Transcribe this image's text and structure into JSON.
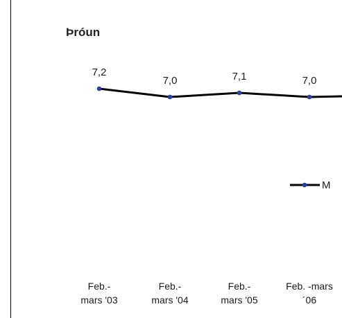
{
  "chart_data": {
    "type": "line",
    "title": "Þróun",
    "categories": [
      [
        "Feb.-",
        "mars '03"
      ],
      [
        "Feb.-",
        "mars '04"
      ],
      [
        "Feb.-",
        "mars '05"
      ],
      [
        "Feb. -mars",
        "´06"
      ]
    ],
    "series": [
      {
        "name": "M",
        "values": [
          7.2,
          7.0,
          7.1,
          7.0
        ],
        "data_labels": [
          "7,2",
          "7,0",
          "7,1",
          "7,0"
        ],
        "color": "#000000",
        "marker_color": "#2f3f9e"
      }
    ],
    "ylim": [
      0,
      10
    ],
    "grid": false,
    "legend_position": "right"
  }
}
